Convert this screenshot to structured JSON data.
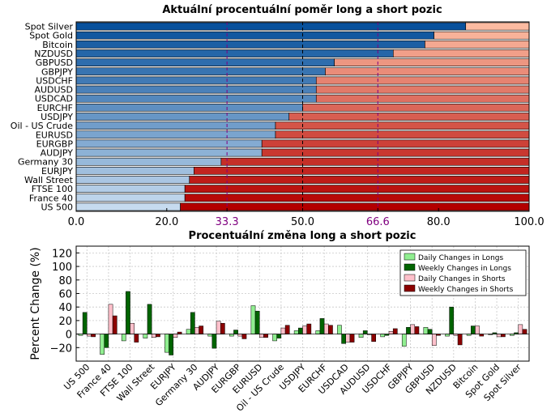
{
  "chart_data": [
    {
      "type": "bar",
      "orientation": "horizontal-stacked",
      "title": "Aktuální procentuální poměr long a short pozic",
      "categories": [
        "Spot Silver",
        "Spot Gold",
        "Bitcoin",
        "NZDUSD",
        "GBPUSD",
        "GBPJPY",
        "USDCHF",
        "AUDUSD",
        "USDCAD",
        "EURCHF",
        "USDJPY",
        "Oil - US Crude",
        "EURUSD",
        "EURGBP",
        "AUDJPY",
        "Germany 30",
        "EURJPY",
        "Wall Street",
        "FTSE 100",
        "France 40",
        "US 500"
      ],
      "long_values": [
        86,
        79,
        77,
        70,
        57,
        55,
        53,
        53,
        53,
        50,
        47,
        44,
        44,
        41,
        41,
        32,
        26,
        25,
        24,
        24,
        23
      ],
      "xlim": [
        0,
        100
      ],
      "xticks": [
        "0.0",
        "20.0",
        "33.3",
        "50.0",
        "66.6",
        "80.0",
        "100.0"
      ],
      "reference_lines": [
        33.3,
        50.0,
        66.6
      ]
    },
    {
      "type": "bar",
      "title": "Procentuální změna long a short pozic",
      "ylabel": "Percent Change (%)",
      "ylim": [
        -40,
        130
      ],
      "yticks": [
        "120",
        "100",
        "80",
        "60",
        "40",
        "20",
        "0",
        "−20"
      ],
      "grid": true,
      "legend_position": "top-right",
      "categories": [
        "US 500",
        "France 40",
        "FTSE 100",
        "Wall Street",
        "EURJPY",
        "Germany 30",
        "AUDJPY",
        "EURGBP",
        "EURUSD",
        "Oil - US Crude",
        "USDJPY",
        "EURCHF",
        "USDCAD",
        "AUDUSD",
        "USDCHF",
        "GBPJPY",
        "GBPUSD",
        "NZDUSD",
        "Bitcoin",
        "Spot Gold",
        "Spot Silver"
      ],
      "series": [
        {
          "name": "Daily Changes in Longs",
          "color": "#90ee90",
          "values": [
            -2,
            -30,
            -10,
            -6,
            -27,
            7,
            -3,
            -3,
            42,
            -10,
            5,
            5,
            13,
            -5,
            -4,
            -18,
            10,
            -3,
            -2,
            -1,
            -2
          ]
        },
        {
          "name": "Weekly Changes in Longs",
          "color": "#006400",
          "values": [
            32,
            -20,
            63,
            44,
            -31,
            32,
            -21,
            6,
            34,
            -6,
            9,
            23,
            -14,
            5,
            -2,
            10,
            7,
            40,
            12,
            2,
            2
          ]
        },
        {
          "name": "Daily Changes in Shorts",
          "color": "#ffc0cb",
          "values": [
            -3,
            44,
            16,
            -5,
            -5,
            10,
            19,
            -3,
            -5,
            9,
            12,
            15,
            -12,
            -1,
            4,
            14,
            -17,
            -2,
            12,
            -4,
            14
          ]
        },
        {
          "name": "Weekly Changes in Shorts",
          "color": "#8b0000",
          "values": [
            -4,
            27,
            -12,
            -4,
            3,
            12,
            16,
            -7,
            -5,
            13,
            15,
            13,
            -12,
            -11,
            8,
            11,
            -2,
            -16,
            -3,
            -4,
            7
          ]
        }
      ]
    }
  ]
}
